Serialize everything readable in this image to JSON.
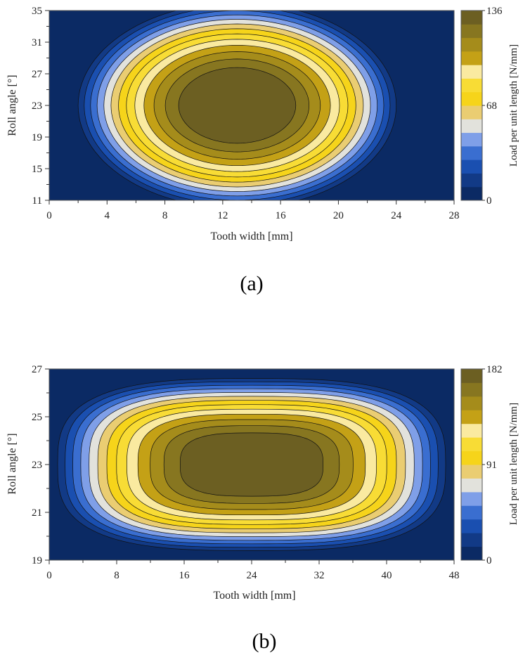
{
  "chart_data": [
    {
      "type": "contour",
      "panel_label": "(a)",
      "xlabel": "Tooth  width [mm]",
      "ylabel": "Roll angle [°]",
      "colorbar_label": "Load per unit length [N/mm]",
      "xlim": [
        0,
        28
      ],
      "ylim": [
        11,
        35
      ],
      "x_ticks": [
        0,
        4,
        8,
        12,
        16,
        20,
        24,
        28
      ],
      "y_ticks": [
        11,
        15,
        19,
        23,
        27,
        31,
        35
      ],
      "colorbar_range": [
        0,
        136
      ],
      "colorbar_ticks": [
        0,
        68,
        136
      ],
      "levels": 14,
      "peak": {
        "x": 13,
        "y": 23,
        "value": 136
      },
      "extent": {
        "x_half_width": 11,
        "y_half_height": 13,
        "shape_exponent": 2
      }
    },
    {
      "type": "contour",
      "panel_label": "(b)",
      "xlabel": "Tooth  width [mm]",
      "ylabel": "Roll angle [°]",
      "colorbar_label": "Load per unit length [N/mm]",
      "xlim": [
        0,
        48
      ],
      "ylim": [
        19,
        27
      ],
      "x_ticks": [
        0,
        8,
        16,
        24,
        32,
        40,
        48
      ],
      "y_ticks": [
        19,
        21,
        23,
        25,
        27
      ],
      "colorbar_range": [
        0,
        182
      ],
      "colorbar_ticks": [
        0,
        91,
        182
      ],
      "levels": 14,
      "peak": {
        "x": 24,
        "y": 23,
        "value": 182
      },
      "extent": {
        "x_half_width": 23,
        "y_half_height": 3.6,
        "shape_exponent": 3
      }
    }
  ],
  "colormap": [
    "#0b2a64",
    "#123a86",
    "#1a4fb0",
    "#3a6ed0",
    "#7f9fe8",
    "#e2e2dc",
    "#eacd72",
    "#f6d41a",
    "#f8dc35",
    "#faeaa0",
    "#c4a116",
    "#a58c1b",
    "#877620",
    "#6c5f22"
  ]
}
